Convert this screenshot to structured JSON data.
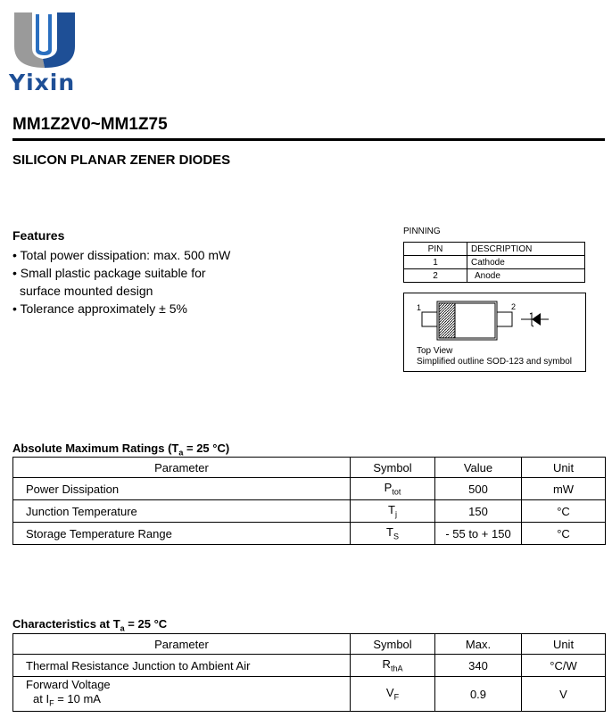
{
  "logo": {
    "text": "Yixin",
    "colors": {
      "gray": "#9a9a9a",
      "blue": "#1e4f96"
    }
  },
  "title": "MM1Z2V0~MM1Z75",
  "subtitle": "SILICON PLANAR ZENER DIODES",
  "features": {
    "heading": "Features",
    "items": [
      "• Total power dissipation: max. 500 mW",
      "• Small plastic package suitable for",
      "  surface mounted design",
      "• Tolerance approximately ± 5%"
    ]
  },
  "pinning": {
    "heading": "PINNING",
    "headers": [
      "PIN",
      "DESCRIPTION"
    ],
    "rows": [
      [
        "1",
        "Cathode"
      ],
      [
        "2",
        "Anode"
      ]
    ],
    "diagram": {
      "pin1": "1",
      "pin2": "2",
      "caption1": "Top View",
      "caption2": "Simplified outline SOD-123 and symbol"
    }
  },
  "abs_max": {
    "heading": "Absolute Maximum Ratings (T",
    "heading_sub": "a",
    "heading_end": " = 25 °C)",
    "headers": [
      "Parameter",
      "Symbol",
      "Value",
      "Unit"
    ],
    "rows": [
      {
        "param": "Power Dissipation",
        "sym": "P",
        "sub": "tot",
        "value": "500",
        "unit": "mW"
      },
      {
        "param": "Junction Temperature",
        "sym": "T",
        "sub": "j",
        "value": "150",
        "unit": "°C"
      },
      {
        "param": "Storage Temperature Range",
        "sym": "T",
        "sub": "S",
        "value": "- 55 to + 150",
        "unit": "°C"
      }
    ]
  },
  "char": {
    "heading": "Characteristics at T",
    "heading_sub": "a",
    "heading_end": " = 25 °C",
    "headers": [
      "Parameter",
      "Symbol",
      "Max.",
      "Unit"
    ],
    "rows": [
      {
        "param": "Thermal Resistance Junction to Ambient Air",
        "sym": "R",
        "sub": "thA",
        "value": "340",
        "unit": "°C/W"
      },
      {
        "param": "Forward Voltage",
        "param2": "at I",
        "param2_sub": "F",
        "param2_end": " = 10 mA",
        "sym": "V",
        "sub": "F",
        "value": "0.9",
        "unit": "V"
      }
    ]
  }
}
